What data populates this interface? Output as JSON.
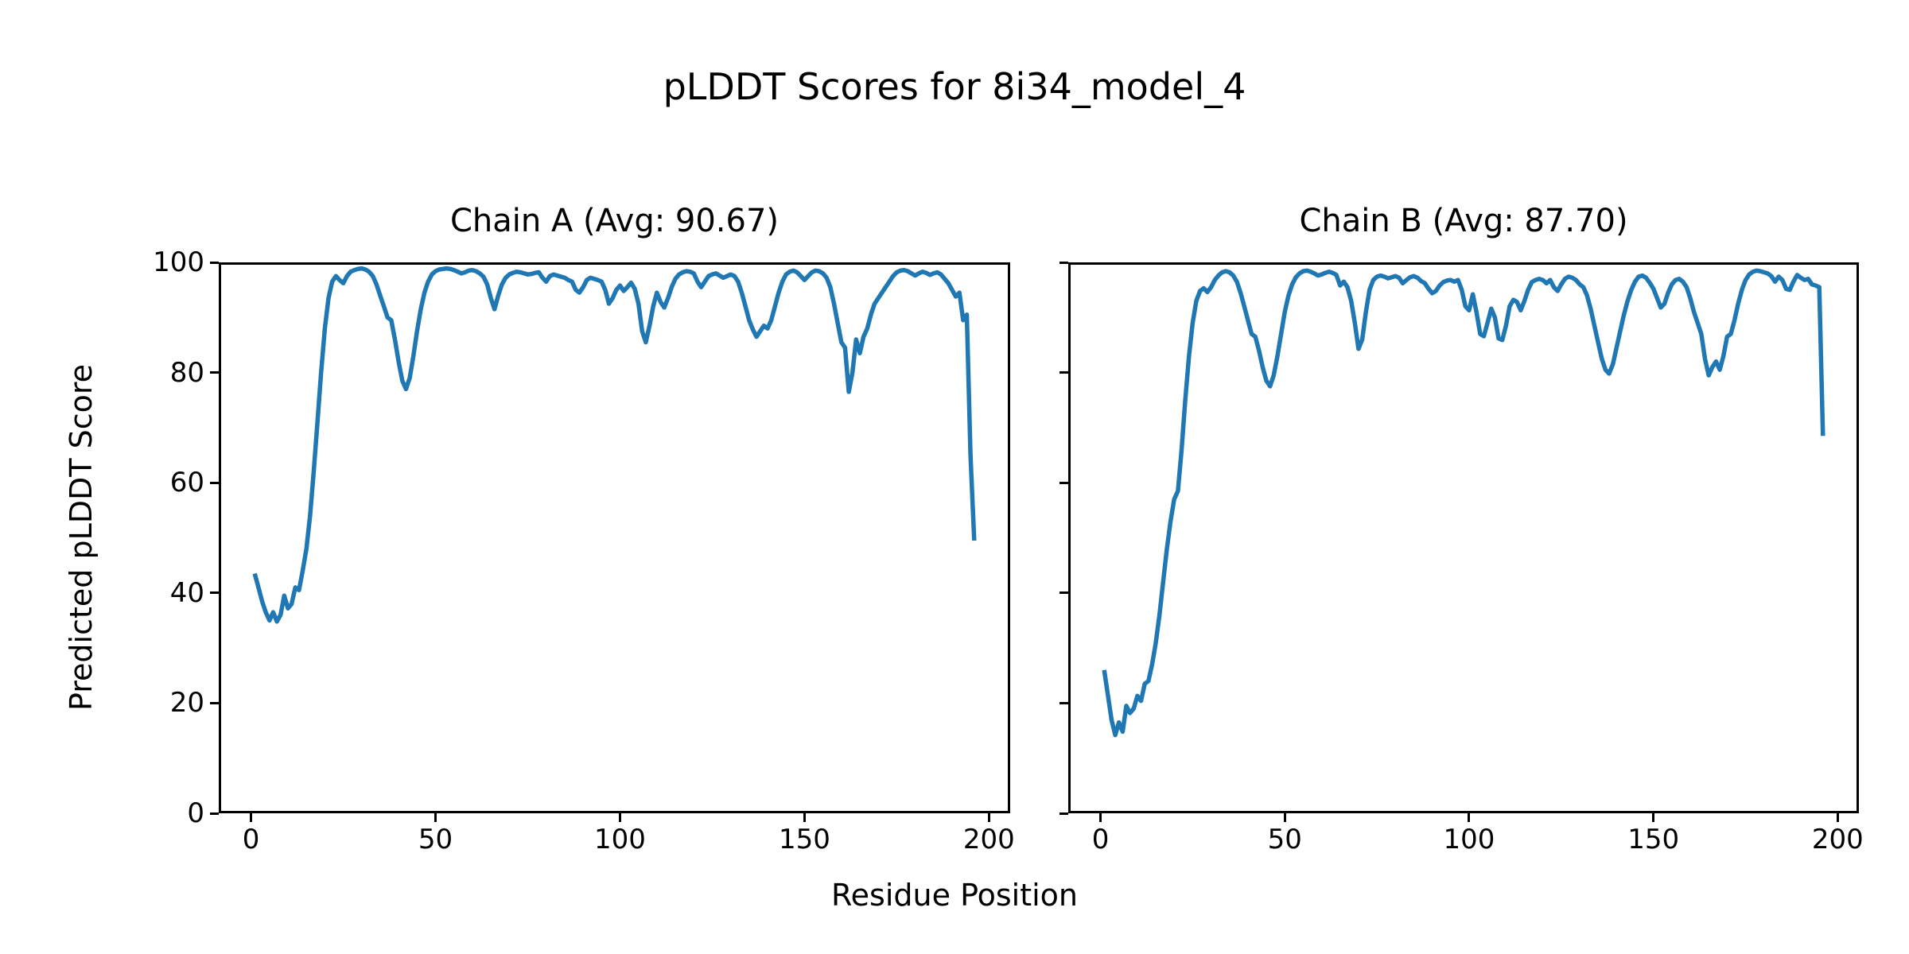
{
  "figure": {
    "title": "pLDDT Scores for 8i34_model_4",
    "xlabel": "Residue Position",
    "ylabel": "Predicted pLDDT Score",
    "background_color": "#ffffff",
    "line_color": "#1f77b4"
  },
  "chart_data": [
    {
      "type": "line",
      "title": "Chain A (Avg: 90.67)",
      "chain": "A",
      "avg_plddt": 90.67,
      "xlim": [
        -8.75,
        205.75
      ],
      "ylim": [
        0,
        100
      ],
      "xticks": [
        0,
        50,
        100,
        150,
        200
      ],
      "yticks": [
        0,
        20,
        40,
        60,
        80,
        100
      ],
      "show_ytick_labels": true,
      "grid": false,
      "legend": "none",
      "series": [
        {
          "name": "chain-a-plddt",
          "color": "#1f77b4",
          "x_start": 1,
          "x_step": 1,
          "values": [
            43.5,
            41.0,
            38.5,
            36.5,
            35.0,
            36.5,
            34.8,
            36.0,
            39.5,
            37.2,
            38.0,
            41.0,
            40.5,
            44.0,
            48.0,
            54.0,
            62.0,
            71.0,
            80.0,
            88.0,
            93.5,
            96.5,
            97.5,
            96.8,
            96.2,
            97.5,
            98.3,
            98.6,
            98.8,
            98.9,
            98.7,
            98.3,
            97.5,
            96.0,
            94.0,
            92.0,
            90.0,
            89.5,
            86.0,
            82.0,
            78.5,
            77.0,
            79.0,
            83.0,
            87.5,
            91.5,
            94.5,
            96.5,
            97.8,
            98.4,
            98.7,
            98.8,
            98.9,
            98.8,
            98.6,
            98.3,
            98.0,
            98.2,
            98.5,
            98.6,
            98.4,
            98.0,
            97.4,
            96.0,
            93.5,
            91.5,
            94.0,
            96.0,
            97.2,
            97.8,
            98.1,
            98.3,
            98.2,
            98.0,
            97.8,
            97.9,
            98.1,
            98.2,
            97.2,
            96.5,
            97.5,
            97.8,
            97.6,
            97.4,
            97.2,
            96.8,
            96.5,
            95.0,
            94.5,
            95.5,
            96.8,
            97.2,
            97.0,
            96.8,
            96.5,
            95.0,
            92.5,
            93.5,
            95.0,
            95.8,
            94.8,
            95.5,
            96.3,
            95.2,
            92.5,
            87.5,
            85.5,
            88.5,
            92.0,
            94.5,
            92.8,
            91.8,
            93.5,
            95.5,
            97.0,
            97.8,
            98.2,
            98.4,
            98.3,
            98.0,
            96.5,
            95.5,
            96.5,
            97.5,
            97.8,
            98.0,
            97.6,
            97.2,
            97.5,
            97.8,
            97.5,
            96.5,
            94.5,
            92.0,
            89.5,
            87.8,
            86.5,
            87.5,
            88.5,
            88.0,
            89.5,
            92.0,
            94.5,
            96.5,
            97.8,
            98.3,
            98.5,
            98.2,
            97.5,
            96.8,
            97.5,
            98.2,
            98.5,
            98.4,
            98.0,
            97.2,
            95.5,
            92.5,
            89.0,
            85.5,
            84.5,
            76.5,
            80.0,
            86.0,
            83.5,
            86.5,
            88.0,
            90.5,
            92.5,
            93.5,
            94.5,
            95.5,
            96.5,
            97.5,
            98.2,
            98.5,
            98.6,
            98.4,
            98.0,
            97.6,
            98.0,
            98.3,
            98.1,
            97.7,
            98.0,
            98.2,
            97.8,
            97.0,
            96.2,
            95.0,
            93.8,
            94.5,
            89.5,
            90.5,
            65.0,
            49.5
          ]
        }
      ]
    },
    {
      "type": "line",
      "title": "Chain B (Avg: 87.70)",
      "chain": "B",
      "avg_plddt": 87.7,
      "xlim": [
        -8.75,
        205.75
      ],
      "ylim": [
        0,
        100
      ],
      "xticks": [
        0,
        50,
        100,
        150,
        200
      ],
      "yticks": [
        0,
        20,
        40,
        60,
        80,
        100
      ],
      "show_ytick_labels": false,
      "grid": false,
      "legend": "none",
      "series": [
        {
          "name": "chain-b-plddt",
          "color": "#1f77b4",
          "x_start": 1,
          "x_step": 1,
          "values": [
            26.0,
            21.5,
            17.0,
            14.2,
            16.5,
            14.8,
            19.5,
            18.2,
            19.0,
            21.3,
            20.4,
            23.5,
            24.0,
            27.0,
            31.0,
            36.0,
            42.0,
            48.0,
            53.0,
            57.0,
            58.5,
            66.0,
            75.0,
            83.0,
            89.0,
            93.0,
            94.8,
            95.3,
            94.6,
            95.5,
            96.8,
            97.6,
            98.2,
            98.4,
            98.2,
            97.6,
            96.5,
            94.5,
            92.0,
            89.5,
            87.0,
            86.5,
            84.0,
            81.0,
            78.5,
            77.5,
            79.5,
            83.0,
            87.0,
            91.0,
            94.0,
            96.0,
            97.3,
            98.0,
            98.4,
            98.5,
            98.3,
            98.0,
            97.6,
            97.8,
            98.1,
            98.3,
            98.1,
            97.7,
            95.8,
            96.5,
            95.5,
            93.0,
            89.0,
            84.3,
            86.0,
            91.0,
            95.0,
            96.8,
            97.4,
            97.6,
            97.4,
            97.1,
            97.3,
            97.5,
            97.2,
            96.2,
            96.8,
            97.3,
            97.5,
            97.2,
            96.6,
            96.2,
            95.2,
            94.4,
            94.8,
            95.8,
            96.4,
            96.7,
            96.8,
            96.5,
            96.8,
            95.0,
            92.0,
            91.3,
            94.2,
            91.0,
            87.0,
            86.6,
            89.0,
            91.6,
            90.0,
            86.2,
            85.9,
            88.5,
            92.0,
            93.2,
            92.8,
            91.3,
            93.0,
            95.0,
            96.4,
            96.8,
            97.0,
            96.8,
            96.2,
            96.8,
            95.5,
            94.8,
            96.0,
            97.0,
            97.4,
            97.2,
            96.8,
            96.0,
            95.5,
            94.0,
            91.5,
            88.5,
            85.5,
            82.5,
            80.5,
            79.8,
            81.5,
            84.5,
            87.5,
            90.5,
            93.0,
            95.0,
            96.5,
            97.4,
            97.6,
            97.2,
            96.3,
            95.2,
            93.5,
            91.8,
            92.5,
            94.5,
            96.0,
            96.8,
            97.0,
            96.5,
            95.5,
            93.5,
            91.0,
            89.0,
            87.0,
            82.5,
            79.5,
            81.0,
            82.0,
            80.5,
            83.0,
            86.5,
            87.0,
            89.5,
            92.5,
            95.0,
            96.8,
            97.8,
            98.3,
            98.5,
            98.4,
            98.2,
            98.0,
            97.5,
            96.5,
            97.4,
            96.8,
            95.2,
            95.0,
            96.5,
            97.7,
            97.2,
            96.8,
            97.0,
            96.0,
            95.8,
            95.5,
            68.5
          ]
        }
      ]
    }
  ]
}
